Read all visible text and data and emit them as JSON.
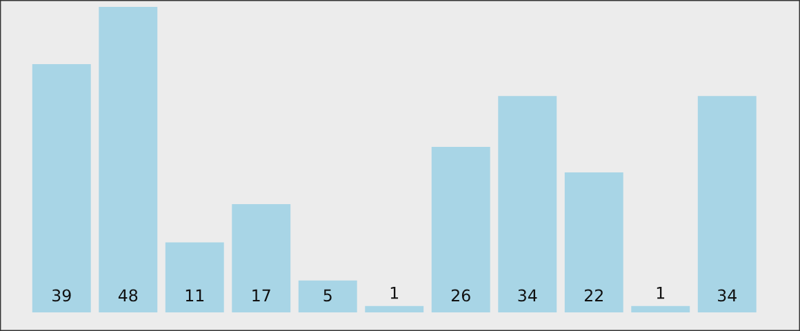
{
  "chart_data": {
    "type": "bar",
    "categories": [
      null,
      null,
      null,
      null,
      null,
      null,
      null,
      null,
      null,
      null,
      null
    ],
    "values": [
      39,
      48,
      11,
      17,
      5,
      1,
      26,
      34,
      22,
      1,
      34
    ],
    "color": "#a8d5e6",
    "data_labels": true,
    "grid": false,
    "legend": false
  }
}
